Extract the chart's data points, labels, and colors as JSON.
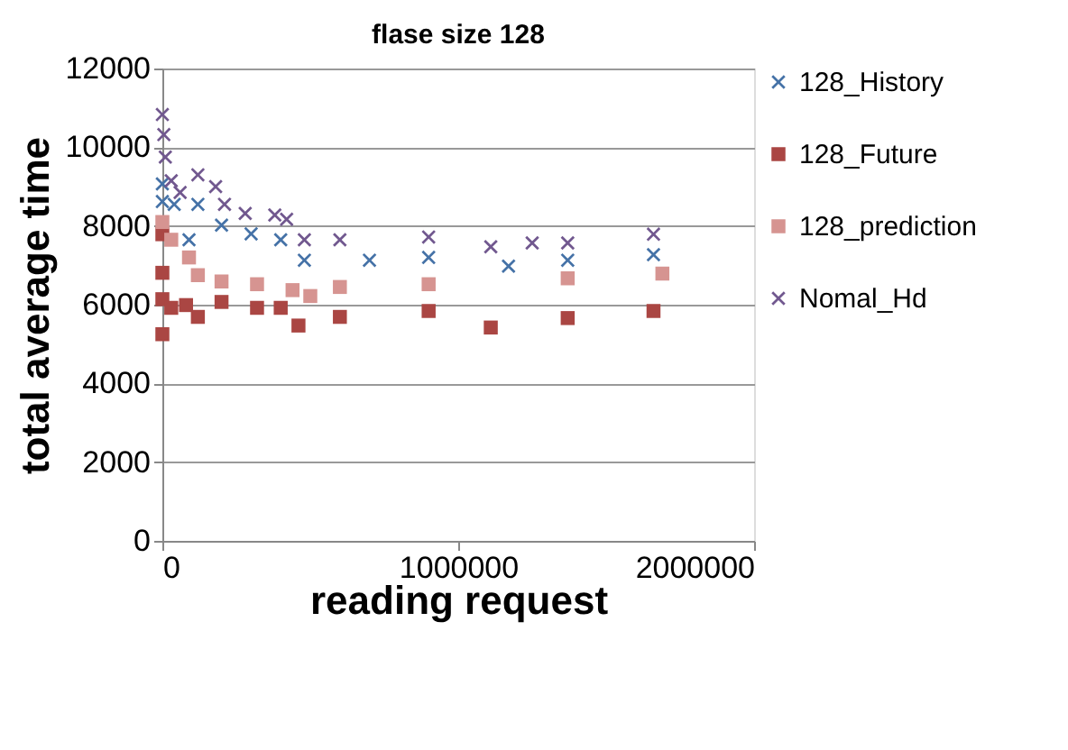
{
  "chart_data": {
    "type": "scatter",
    "title": "flase size 128",
    "xlabel": "reading request",
    "ylabel": "total average time",
    "xlim": [
      0,
      2000000
    ],
    "xticks": [
      0,
      1000000,
      2000000
    ],
    "ylim": [
      0,
      12000
    ],
    "yticks": [
      0,
      2000,
      4000,
      6000,
      8000,
      10000,
      12000
    ],
    "grid": "y",
    "legend": "right",
    "series": [
      {
        "name": "128_History",
        "color": "#4572a7",
        "marker": "cross",
        "x": [
          0,
          0,
          40000,
          90000,
          120000,
          200000,
          300000,
          400000,
          480000,
          700000,
          900000,
          1170000,
          1370000,
          1660000
        ],
        "values": [
          9070,
          8620,
          8550,
          7650,
          8550,
          8020,
          7800,
          7650,
          7130,
          7130,
          7200,
          6980,
          7130,
          7270
        ]
      },
      {
        "name": "128_Future",
        "color": "#aa4643",
        "marker": "square",
        "x": [
          0,
          0,
          0,
          0,
          30000,
          80000,
          120000,
          200000,
          320000,
          400000,
          460000,
          600000,
          900000,
          1110000,
          1370000,
          1660000
        ],
        "values": [
          7790,
          6810,
          6140,
          5250,
          5920,
          5990,
          5690,
          6070,
          5920,
          5920,
          5470,
          5690,
          5840,
          5420,
          5660,
          5840
        ]
      },
      {
        "name": "128_prediction",
        "color": "#d69491",
        "marker": "square",
        "x": [
          0,
          30000,
          90000,
          120000,
          200000,
          320000,
          440000,
          500000,
          600000,
          900000,
          1370000,
          1690000
        ],
        "values": [
          8100,
          7650,
          7200,
          6750,
          6590,
          6520,
          6370,
          6220,
          6450,
          6520,
          6670,
          6790
        ]
      },
      {
        "name": "Nomal_Hd",
        "color": "#71588f",
        "marker": "cross",
        "x": [
          0,
          5000,
          10000,
          30000,
          60000,
          120000,
          180000,
          210000,
          280000,
          380000,
          420000,
          480000,
          600000,
          900000,
          1110000,
          1250000,
          1370000,
          1660000
        ],
        "values": [
          10830,
          10320,
          9750,
          9150,
          8850,
          9300,
          9000,
          8550,
          8320,
          8280,
          8170,
          7650,
          7650,
          7720,
          7470,
          7570,
          7570,
          7790
        ]
      }
    ]
  }
}
